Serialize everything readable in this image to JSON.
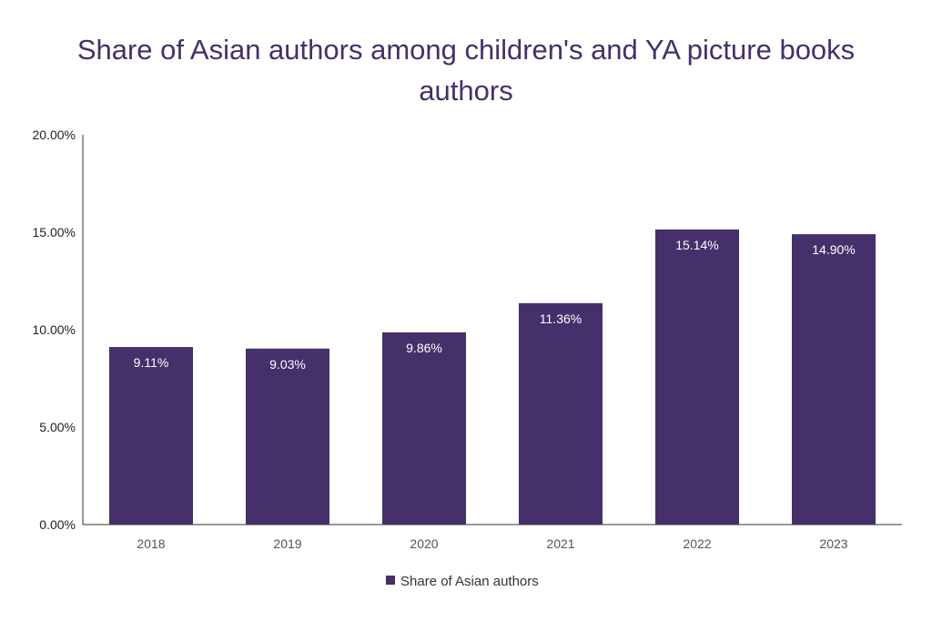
{
  "chart_data": {
    "type": "bar",
    "title": "Share of Asian authors among children's and YA picture books authors",
    "categories": [
      "2018",
      "2019",
      "2020",
      "2021",
      "2022",
      "2023"
    ],
    "series": [
      {
        "name": "Share of Asian authors",
        "values": [
          9.11,
          9.03,
          9.86,
          11.36,
          15.14,
          14.9
        ],
        "data_labels": [
          "9.11%",
          "9.03%",
          "9.86%",
          "11.36%",
          "15.14%",
          "14.90%"
        ],
        "color": "#45306b"
      }
    ],
    "ylim": [
      0,
      20
    ],
    "yticks": [
      0,
      5,
      10,
      15,
      20
    ],
    "ytick_labels": [
      "0.00%",
      "5.00%",
      "10.00%",
      "15.00%",
      "20.00%"
    ],
    "xlabel": "",
    "ylabel": "",
    "grid": false,
    "legend_position": "bottom-center"
  }
}
